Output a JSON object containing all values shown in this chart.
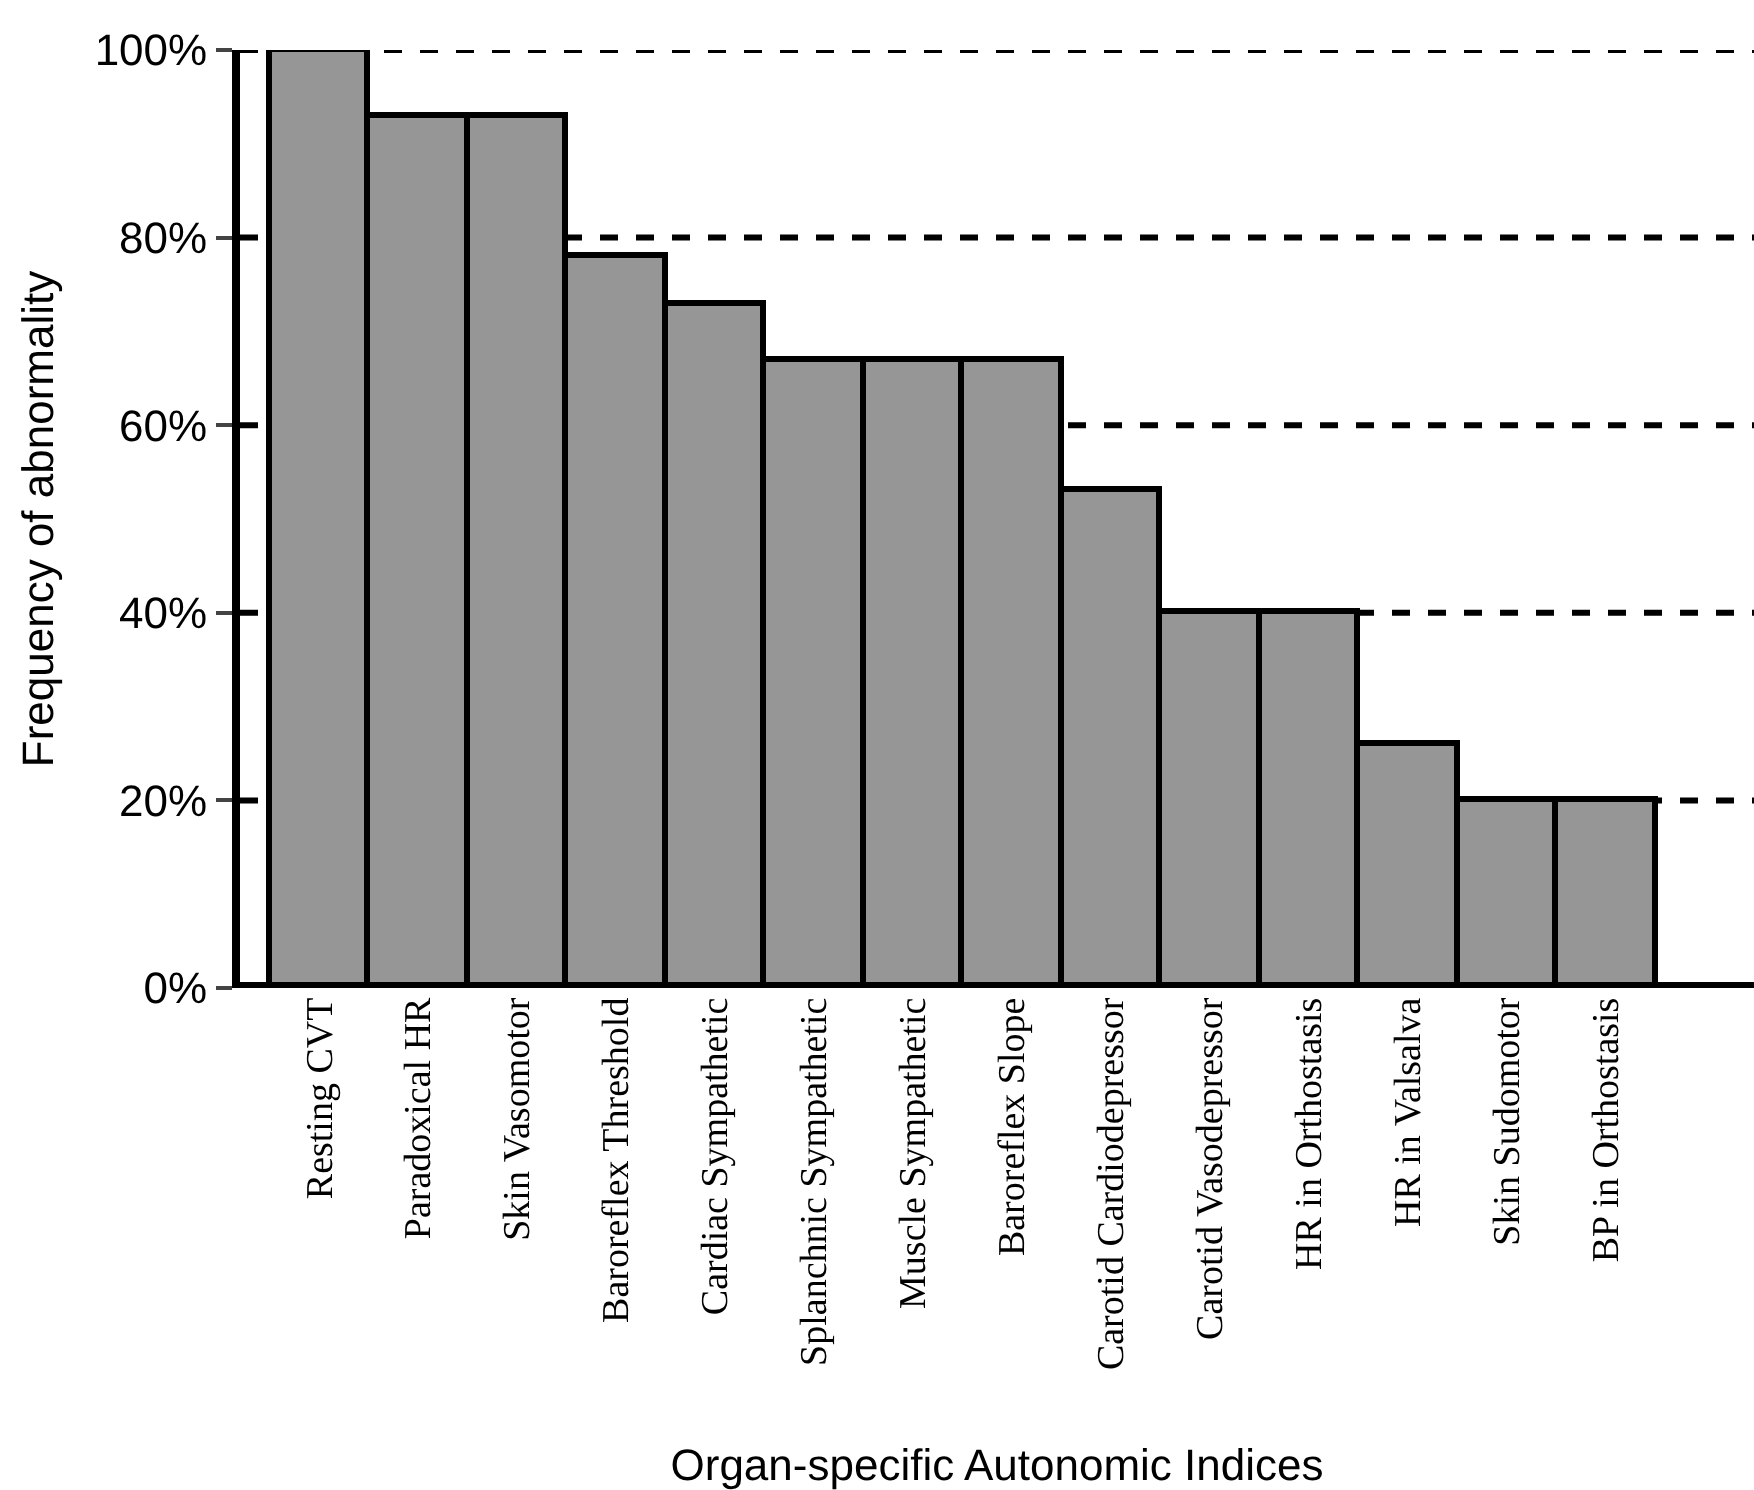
{
  "chart_data": {
    "type": "bar",
    "xlabel": "Organ-specific Autonomic Indices",
    "ylabel": "Frequency of abnormality",
    "categories": [
      "Resting CVT",
      "Paradoxical HR",
      "Skin Vasomotor",
      "Baroreflex Threshold",
      "Cardiac Sympathetic",
      "Splanchnic Sympathetic",
      "Muscle Sympathetic",
      "Baroreflex Slope",
      "Carotid Cardiodepressor",
      "Carotid Vasodepressor",
      "HR in Orthostasis",
      "HR in Valsalva",
      "Skin Sudomotor",
      "BP in Orthostasis"
    ],
    "values": [
      100,
      93,
      93,
      78,
      73,
      67,
      67,
      67,
      53,
      40,
      40,
      26,
      20,
      20
    ],
    "color": "#969696",
    "ylim": [
      0,
      100
    ],
    "yticks": [
      {
        "value": 0,
        "label": "0%"
      },
      {
        "value": 20,
        "label": "20%"
      },
      {
        "value": 40,
        "label": "40%"
      },
      {
        "value": 60,
        "label": "60%"
      },
      {
        "value": 80,
        "label": "80%"
      },
      {
        "value": 100,
        "label": "100%"
      }
    ],
    "grid": "y",
    "line_style": "dashed"
  }
}
